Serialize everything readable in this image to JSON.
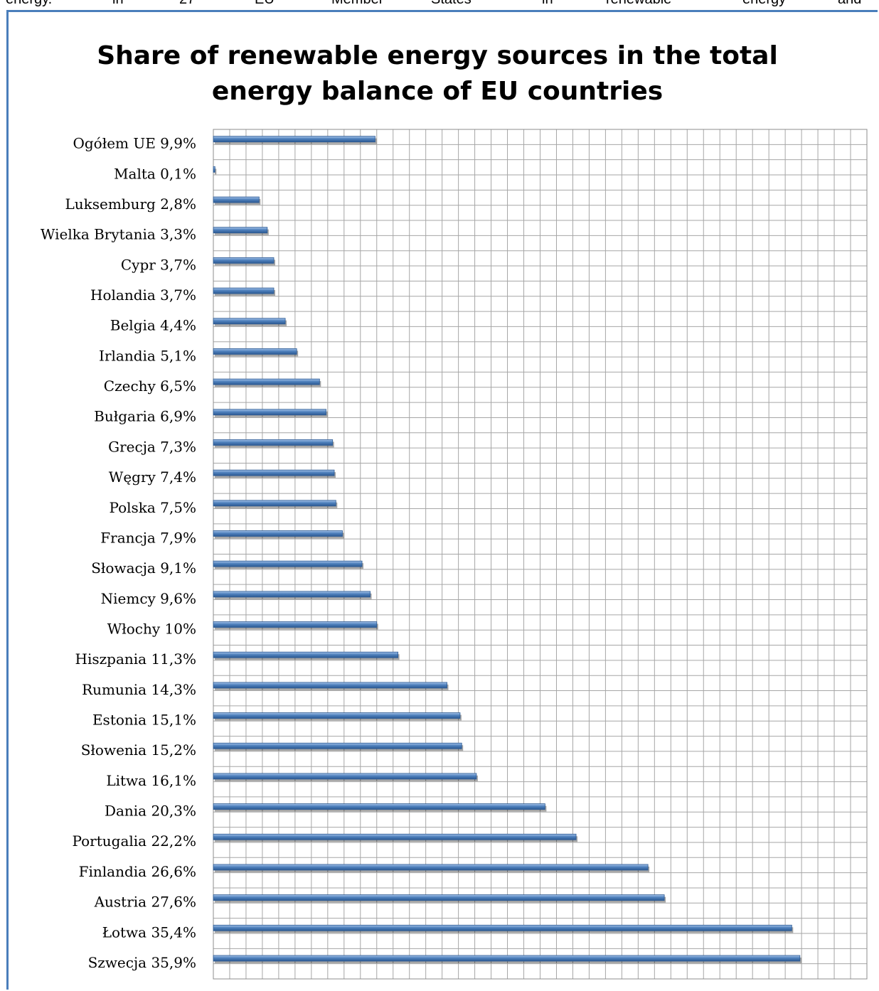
{
  "page_header": {
    "words": [
      "energy.",
      "in",
      "27",
      "EU",
      "Member",
      "States",
      "in",
      "renewable",
      "energy",
      "and"
    ]
  },
  "chart_data": {
    "type": "bar",
    "orientation": "horizontal",
    "title": "Share of renewable energy sources in the total energy balance of EU countries",
    "categories": [
      "Ogółem UE 9,9%",
      "Malta 0,1%",
      "Luksemburg 2,8%",
      "Wielka Brytania 3,3%",
      "Cypr 3,7%",
      "Holandia 3,7%",
      "Belgia 4,4%",
      "Irlandia 5,1%",
      "Czechy 6,5%",
      "Bułgaria 6,9%",
      "Grecja 7,3%",
      "Węgry 7,4%",
      "Polska 7,5%",
      "Francja 7,9%",
      "Słowacja 9,1%",
      "Niemcy 9,6%",
      "Włochy 10%",
      "Hiszpania 11,3%",
      "Rumunia 14,3%",
      "Estonia 15,1%",
      "Słowenia 15,2%",
      "Litwa 16,1%",
      "Dania 20,3%",
      "Portugalia 22,2%",
      "Finlandia 26,6%",
      "Austria 27,6%",
      "Łotwa 35,4%",
      "Szwecja 35,9%"
    ],
    "values": [
      9.9,
      0.1,
      2.8,
      3.3,
      3.7,
      3.7,
      4.4,
      5.1,
      6.5,
      6.9,
      7.3,
      7.4,
      7.5,
      7.9,
      9.1,
      9.6,
      10,
      11.3,
      14.3,
      15.1,
      15.2,
      16.1,
      20.3,
      22.2,
      26.6,
      27.6,
      35.4,
      35.9
    ],
    "xlim": [
      0,
      40
    ],
    "grid": true,
    "bar_color": "#4f81bd",
    "frame_color": "#4a7ebb"
  }
}
